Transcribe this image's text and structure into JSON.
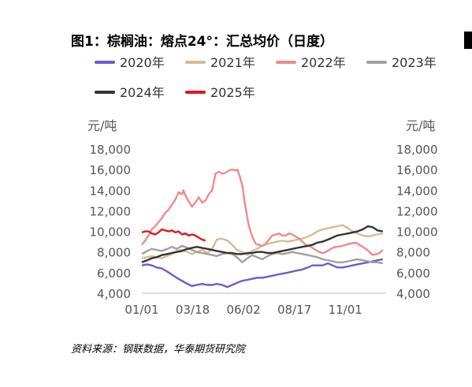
{
  "title": "图1：棕榈油：熔点24°：汇总均价（日度）",
  "source": "资料来源：钢联数据，华泰期货研究院",
  "chart_data": {
    "type": "line",
    "title": "图1：棕榈油：熔点24°：汇总均价（日度）",
    "ylabel_left": "元/吨",
    "ylabel_right": "元/吨",
    "ylim": [
      4000,
      18000
    ],
    "yticks": [
      "18,000",
      "16,000",
      "14,000",
      "12,000",
      "10,000",
      "8,000",
      "6,000",
      "4,000"
    ],
    "ytick_values": [
      18000,
      16000,
      14000,
      12000,
      10000,
      8000,
      6000,
      4000
    ],
    "xlim": [
      0,
      365
    ],
    "xticks": [
      "01/01",
      "03/18",
      "06/02",
      "08/17",
      "11/01"
    ],
    "xtick_days": [
      0,
      76,
      152,
      228,
      304
    ],
    "grid": false,
    "legend_position": "top",
    "series": [
      {
        "name": "2020年",
        "color": "#6b5bd6",
        "x": [
          0,
          8,
          15,
          22,
          30,
          38,
          45,
          52,
          60,
          68,
          75,
          82,
          90,
          98,
          105,
          112,
          120,
          128,
          135,
          142,
          150,
          158,
          165,
          172,
          180,
          188,
          195,
          202,
          210,
          218,
          225,
          232,
          240,
          248,
          255,
          262,
          270,
          278,
          285,
          292,
          300,
          308,
          315,
          322,
          330,
          338,
          345,
          352,
          360
        ],
        "y": [
          6700,
          6800,
          6700,
          6500,
          6400,
          6100,
          5800,
          5500,
          5200,
          4900,
          4700,
          4800,
          4900,
          4800,
          4800,
          4900,
          4800,
          4600,
          4800,
          5000,
          5200,
          5300,
          5400,
          5500,
          5500,
          5600,
          5700,
          5800,
          5900,
          6000,
          6100,
          6200,
          6300,
          6500,
          6700,
          6700,
          6700,
          6900,
          6700,
          6500,
          6500,
          6600,
          6700,
          6800,
          6900,
          7000,
          7100,
          7200,
          7300
        ]
      },
      {
        "name": "2021年",
        "color": "#d6bc94",
        "x": [
          0,
          8,
          15,
          22,
          30,
          38,
          45,
          52,
          60,
          68,
          75,
          82,
          90,
          98,
          105,
          112,
          120,
          128,
          135,
          142,
          150,
          158,
          165,
          172,
          180,
          188,
          195,
          202,
          210,
          218,
          225,
          232,
          240,
          248,
          255,
          262,
          270,
          278,
          285,
          292,
          300,
          308,
          315,
          322,
          330,
          338,
          345,
          352,
          360
        ],
        "y": [
          7400,
          7500,
          7600,
          7500,
          7400,
          7600,
          7800,
          8100,
          8200,
          8000,
          7800,
          8000,
          8200,
          7900,
          8300,
          9200,
          9300,
          9100,
          8700,
          8200,
          8000,
          7700,
          8100,
          8300,
          8600,
          8800,
          8900,
          9000,
          9100,
          9000,
          9100,
          9200,
          9300,
          9500,
          9700,
          10000,
          10200,
          10300,
          10400,
          10500,
          10600,
          10300,
          10000,
          9800,
          9600,
          9500,
          9600,
          9700,
          9800
        ]
      },
      {
        "name": "2022年",
        "color": "#ef8a8c",
        "x": [
          0,
          5,
          10,
          15,
          20,
          25,
          30,
          35,
          40,
          45,
          50,
          55,
          60,
          62,
          65,
          70,
          75,
          80,
          85,
          90,
          95,
          100,
          105,
          110,
          115,
          120,
          125,
          130,
          135,
          140,
          143,
          146,
          150,
          155,
          160,
          165,
          170,
          175,
          180,
          185,
          190,
          195,
          200,
          205,
          210,
          215,
          220,
          225,
          230,
          235,
          240,
          245,
          250,
          255,
          260,
          265,
          270,
          275,
          280,
          285,
          290,
          300,
          310,
          320,
          330,
          335,
          340,
          345,
          350,
          355,
          360
        ],
        "y": [
          8700,
          9100,
          9600,
          10200,
          10500,
          10900,
          11300,
          11800,
          12100,
          12600,
          13100,
          13800,
          13600,
          14000,
          13500,
          12900,
          12400,
          12800,
          13300,
          12800,
          13000,
          13600,
          14000,
          15600,
          15800,
          15600,
          15700,
          15900,
          16000,
          15900,
          16000,
          15400,
          14500,
          12300,
          10500,
          9500,
          8800,
          8700,
          8600,
          8800,
          9200,
          9600,
          9700,
          9800,
          9600,
          9600,
          9800,
          9700,
          9500,
          9300,
          9000,
          8700,
          8600,
          8400,
          8200,
          8000,
          7900,
          8000,
          8200,
          8400,
          8500,
          8600,
          8800,
          8900,
          8500,
          8300,
          8000,
          7700,
          7800,
          7900,
          8200
        ]
      },
      {
        "name": "2023年",
        "color": "#a0a0a0",
        "x": [
          0,
          8,
          15,
          22,
          30,
          38,
          45,
          52,
          60,
          68,
          75,
          82,
          90,
          98,
          105,
          112,
          120,
          128,
          135,
          142,
          150,
          158,
          165,
          172,
          180,
          188,
          195,
          202,
          210,
          218,
          225,
          232,
          240,
          248,
          255,
          262,
          270,
          278,
          285,
          292,
          300,
          308,
          315,
          322,
          330,
          338,
          345,
          352,
          360
        ],
        "y": [
          7800,
          8100,
          8300,
          8200,
          8100,
          8300,
          8500,
          8300,
          8600,
          8400,
          8200,
          8000,
          7900,
          7800,
          7700,
          7600,
          7800,
          7900,
          7800,
          7500,
          7000,
          7400,
          7700,
          7500,
          7300,
          7600,
          7800,
          7900,
          7800,
          7900,
          8000,
          7900,
          7800,
          7700,
          7600,
          7500,
          7300,
          7200,
          7100,
          7000,
          7000,
          7100,
          7200,
          7300,
          7200,
          7100,
          7000,
          7000,
          6900
        ]
      },
      {
        "name": "2024年",
        "color": "#333333",
        "x": [
          0,
          8,
          15,
          22,
          30,
          38,
          45,
          52,
          60,
          68,
          75,
          82,
          90,
          98,
          105,
          112,
          120,
          128,
          135,
          142,
          150,
          158,
          165,
          172,
          180,
          188,
          195,
          202,
          210,
          218,
          225,
          232,
          240,
          248,
          255,
          262,
          270,
          278,
          285,
          292,
          300,
          308,
          315,
          322,
          330,
          338,
          345,
          352,
          360
        ],
        "y": [
          7000,
          7200,
          7400,
          7500,
          7700,
          7800,
          7900,
          8000,
          8100,
          8300,
          8400,
          8500,
          8400,
          8300,
          8200,
          8100,
          8000,
          7900,
          7900,
          7800,
          7800,
          7900,
          7900,
          8000,
          8000,
          7900,
          7900,
          8000,
          8100,
          8200,
          8300,
          8400,
          8500,
          8600,
          8700,
          8900,
          9000,
          9200,
          9400,
          9600,
          9700,
          9800,
          9900,
          10000,
          10200,
          10500,
          10400,
          10100,
          10000
        ]
      },
      {
        "name": "2025年",
        "color": "#e0161e",
        "x": [
          0,
          5,
          10,
          15,
          20,
          25,
          30,
          35,
          40,
          45,
          50,
          55,
          60,
          65,
          70,
          75,
          80,
          85,
          90,
          95
        ],
        "y": [
          9900,
          10000,
          10000,
          9800,
          9700,
          9900,
          10200,
          10100,
          10000,
          10100,
          9900,
          10000,
          9700,
          9800,
          9600,
          9700,
          9600,
          9400,
          9200,
          9100
        ]
      }
    ]
  }
}
